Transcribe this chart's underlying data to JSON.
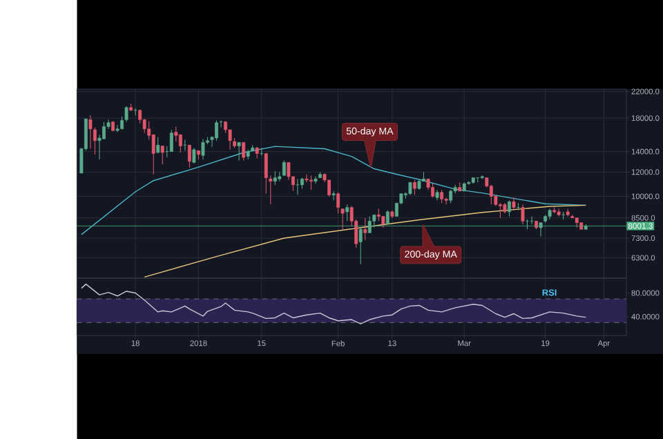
{
  "chart_data": [
    {
      "type": "candlestick",
      "x": [
        "2017-12-06",
        "2017-12-07",
        "2017-12-08",
        "2017-12-09",
        "2017-12-10",
        "2017-12-11",
        "2017-12-12",
        "2017-12-13",
        "2017-12-14",
        "2017-12-15",
        "2017-12-16",
        "2017-12-17",
        "2017-12-18",
        "2017-12-19",
        "2017-12-20",
        "2017-12-21",
        "2017-12-22",
        "2017-12-23",
        "2017-12-24",
        "2017-12-25",
        "2017-12-26",
        "2017-12-27",
        "2017-12-28",
        "2017-12-29",
        "2017-12-30",
        "2017-12-31",
        "2018-01-01",
        "2018-01-02",
        "2018-01-03",
        "2018-01-04",
        "2018-01-05",
        "2018-01-06",
        "2018-01-07",
        "2018-01-08",
        "2018-01-09",
        "2018-01-10",
        "2018-01-11",
        "2018-01-12",
        "2018-01-13",
        "2018-01-14",
        "2018-01-15",
        "2018-01-16",
        "2018-01-17",
        "2018-01-18",
        "2018-01-19",
        "2018-01-20",
        "2018-01-21",
        "2018-01-22",
        "2018-01-23",
        "2018-01-24",
        "2018-01-25",
        "2018-01-26",
        "2018-01-27",
        "2018-01-28",
        "2018-01-29",
        "2018-01-30",
        "2018-01-31",
        "2018-02-01",
        "2018-02-02",
        "2018-02-03",
        "2018-02-04",
        "2018-02-05",
        "2018-02-06",
        "2018-02-07",
        "2018-02-08",
        "2018-02-09",
        "2018-02-10",
        "2018-02-11",
        "2018-02-12",
        "2018-02-13",
        "2018-02-14",
        "2018-02-15",
        "2018-02-16",
        "2018-02-17",
        "2018-02-18",
        "2018-02-19",
        "2018-02-20",
        "2018-02-21",
        "2018-02-22",
        "2018-02-23",
        "2018-02-24",
        "2018-02-25",
        "2018-02-26",
        "2018-02-27",
        "2018-02-28",
        "2018-03-01",
        "2018-03-02",
        "2018-03-03",
        "2018-03-04",
        "2018-03-05",
        "2018-03-06",
        "2018-03-07",
        "2018-03-08",
        "2018-03-09",
        "2018-03-10",
        "2018-03-11",
        "2018-03-12",
        "2018-03-13",
        "2018-03-14",
        "2018-03-15",
        "2018-03-16",
        "2018-03-17",
        "2018-03-18",
        "2018-03-19",
        "2018-03-20",
        "2018-03-21",
        "2018-03-22",
        "2018-03-23",
        "2018-03-24",
        "2018-03-25",
        "2018-03-26",
        "2018-03-27",
        "2018-03-28"
      ],
      "ohlc": [
        [
          11900,
          14400,
          11900,
          14300
        ],
        [
          14300,
          17900,
          14100,
          17900
        ],
        [
          17800,
          18400,
          14300,
          16600
        ],
        [
          16500,
          16800,
          13700,
          15200
        ],
        [
          15200,
          15900,
          13200,
          15500
        ],
        [
          15400,
          17500,
          15400,
          16900
        ],
        [
          16900,
          17800,
          16600,
          17400
        ],
        [
          17500,
          17600,
          16300,
          16400
        ],
        [
          16400,
          17100,
          16200,
          16600
        ],
        [
          16600,
          18200,
          16600,
          17700
        ],
        [
          17800,
          19700,
          17500,
          19500
        ],
        [
          19500,
          20100,
          19000,
          19100
        ],
        [
          19100,
          19400,
          18400,
          19100
        ],
        [
          19100,
          19200,
          17300,
          17800
        ],
        [
          17800,
          17900,
          16100,
          16600
        ],
        [
          16600,
          17600,
          15300,
          15800
        ],
        [
          15900,
          15900,
          11800,
          13800
        ],
        [
          13900,
          15600,
          13800,
          14700
        ],
        [
          14600,
          14600,
          12700,
          13900
        ],
        [
          14000,
          14600,
          13400,
          14000
        ],
        [
          14000,
          16500,
          14000,
          16100
        ],
        [
          16200,
          16900,
          15100,
          15800
        ],
        [
          15900,
          15900,
          13900,
          14600
        ],
        [
          14700,
          15300,
          14100,
          14700
        ],
        [
          14700,
          14700,
          12400,
          13000
        ],
        [
          12900,
          14400,
          12800,
          14200
        ],
        [
          14100,
          14100,
          13200,
          13700
        ],
        [
          13600,
          15400,
          13200,
          15000
        ],
        [
          15000,
          15600,
          14800,
          15200
        ],
        [
          15300,
          15700,
          14500,
          15600
        ],
        [
          15500,
          17700,
          15200,
          17400
        ],
        [
          17500,
          17700,
          16800,
          17500
        ],
        [
          17500,
          17600,
          16100,
          16500
        ],
        [
          16500,
          16500,
          14200,
          15200
        ],
        [
          15100,
          15500,
          14400,
          14600
        ],
        [
          14600,
          15000,
          13100,
          15000
        ],
        [
          15000,
          15000,
          13100,
          13400
        ],
        [
          13500,
          14200,
          13200,
          14000
        ],
        [
          14100,
          14700,
          14000,
          14400
        ],
        [
          14400,
          14500,
          13300,
          13800
        ],
        [
          13800,
          14400,
          13600,
          13800
        ],
        [
          13800,
          13800,
          10200,
          11500
        ],
        [
          11400,
          11700,
          9400,
          11200
        ],
        [
          11200,
          12100,
          10900,
          11500
        ],
        [
          11400,
          12000,
          11200,
          11600
        ],
        [
          11700,
          13100,
          11700,
          12900
        ],
        [
          12900,
          12900,
          11300,
          11600
        ],
        [
          11600,
          11600,
          10400,
          10900
        ],
        [
          10900,
          11400,
          10100,
          10900
        ],
        [
          10900,
          11500,
          10600,
          11400
        ],
        [
          11400,
          11800,
          11100,
          11300
        ],
        [
          11300,
          11700,
          10500,
          11200
        ],
        [
          11200,
          11600,
          11000,
          11400
        ],
        [
          11500,
          12000,
          11500,
          11800
        ],
        [
          11800,
          11900,
          11100,
          11300
        ],
        [
          11300,
          11300,
          10000,
          10100
        ],
        [
          10100,
          10400,
          9700,
          10200
        ],
        [
          10200,
          10300,
          8800,
          9200
        ],
        [
          9100,
          9100,
          7800,
          8800
        ],
        [
          8900,
          9400,
          8300,
          9200
        ],
        [
          9200,
          9300,
          8000,
          8300
        ],
        [
          8300,
          8400,
          6800,
          7000
        ],
        [
          7100,
          7900,
          6000,
          7800
        ],
        [
          7800,
          8500,
          7200,
          7600
        ],
        [
          7600,
          8600,
          7600,
          8300
        ],
        [
          8300,
          8700,
          7900,
          8700
        ],
        [
          8700,
          9100,
          8300,
          8600
        ],
        [
          8600,
          8600,
          7900,
          8100
        ],
        [
          8100,
          9000,
          8100,
          8900
        ],
        [
          8900,
          9000,
          8500,
          8600
        ],
        [
          8600,
          9500,
          8600,
          9500
        ],
        [
          9500,
          10200,
          9400,
          10200
        ],
        [
          10100,
          10300,
          9800,
          10200
        ],
        [
          10200,
          11100,
          10100,
          11100
        ],
        [
          11100,
          11300,
          10100,
          10600
        ],
        [
          10600,
          11300,
          10500,
          11200
        ],
        [
          11200,
          12000,
          11200,
          11400
        ],
        [
          11400,
          11400,
          10500,
          10700
        ],
        [
          10700,
          11000,
          9900,
          10000
        ],
        [
          9900,
          10500,
          9700,
          10300
        ],
        [
          10300,
          10500,
          9500,
          9800
        ],
        [
          9800,
          9900,
          9400,
          9700
        ],
        [
          9700,
          10500,
          9500,
          10400
        ],
        [
          10400,
          10900,
          10200,
          10700
        ],
        [
          10700,
          11100,
          10400,
          10400
        ],
        [
          10400,
          11100,
          10400,
          11000
        ],
        [
          11000,
          11200,
          10900,
          11100
        ],
        [
          11100,
          11500,
          11000,
          11500
        ],
        [
          11500,
          11500,
          11100,
          11500
        ],
        [
          11500,
          11700,
          11400,
          11600
        ],
        [
          11500,
          11500,
          10700,
          10800
        ],
        [
          10800,
          10900,
          9400,
          10000
        ],
        [
          10000,
          10100,
          9300,
          9400
        ],
        [
          9400,
          9500,
          8500,
          9300
        ],
        [
          9400,
          9500,
          8800,
          8900
        ],
        [
          8900,
          9700,
          8600,
          9600
        ],
        [
          9600,
          9900,
          9000,
          9200
        ],
        [
          9200,
          9500,
          9000,
          9200
        ],
        [
          9200,
          9400,
          8100,
          8300
        ],
        [
          8300,
          8400,
          7800,
          8300
        ],
        [
          8300,
          8600,
          8100,
          8300
        ],
        [
          8300,
          8300,
          7800,
          7900
        ],
        [
          7900,
          8200,
          7400,
          8200
        ],
        [
          8300,
          8700,
          8200,
          8600
        ],
        [
          8600,
          9100,
          8400,
          9000
        ],
        [
          9000,
          9200,
          8800,
          8900
        ],
        [
          8900,
          9100,
          8600,
          8700
        ],
        [
          8700,
          8900,
          8400,
          8700
        ],
        [
          8900,
          9100,
          8600,
          8700
        ],
        [
          8600,
          8700,
          8500,
          8500
        ],
        [
          8500,
          8500,
          7900,
          8200
        ],
        [
          8200,
          8200,
          7800,
          7800
        ],
        [
          7800,
          8100,
          7800,
          8001.3
        ]
      ],
      "series": [
        {
          "type": "line",
          "color": "#4db6c8",
          "x": [
            "2017-12-06",
            "2017-12-18",
            "2017-12-22",
            "2018-01-01",
            "2018-01-11",
            "2018-01-18",
            "2018-01-29",
            "2018-02-04",
            "2018-02-09",
            "2018-02-14",
            "2018-02-19",
            "2018-02-27",
            "2018-03-05",
            "2018-03-11",
            "2018-03-19",
            "2018-03-28"
          ],
          "values": [
            7500,
            10350,
            11250,
            12450,
            13900,
            14550,
            14300,
            13500,
            12300,
            11800,
            11350,
            10550,
            10250,
            9900,
            9450,
            9350
          ]
        },
        {
          "type": "line",
          "color": "#e6c77a",
          "x": [
            "2017-12-20",
            "2018-01-05",
            "2018-01-20",
            "2018-02-05",
            "2018-02-19",
            "2018-03-05",
            "2018-03-20",
            "2018-03-28"
          ],
          "values": [
            5450,
            6360,
            7300,
            7860,
            8380,
            8860,
            9270,
            9350
          ]
        }
      ],
      "xlim": [
        "2017-12-05",
        "2018-04-06"
      ],
      "xticks": [
        {
          "value": "2017-12-18",
          "label": null
        },
        {
          "value": "2018-01-01",
          "label": null
        },
        {
          "value": "2018-01-15",
          "label": null
        },
        {
          "value": "2018-02-01",
          "label": null
        },
        {
          "value": "2018-02-13",
          "label": null
        },
        {
          "value": "2018-03-01",
          "label": null
        },
        {
          "value": "2018-03-19",
          "label": null
        },
        {
          "value": "2018-04-01",
          "label": null
        }
      ],
      "ylim": [
        5400,
        22400
      ],
      "log": true,
      "yticks": [
        {
          "value": 6300,
          "label": "6300.0"
        },
        {
          "value": 7300,
          "label": "7300.0"
        },
        {
          "value": 8500,
          "label": "8500.0"
        },
        {
          "value": 10000,
          "label": "10000.0"
        },
        {
          "value": 12000,
          "label": "12000.0"
        },
        {
          "value": 14000,
          "label": "14000.0"
        },
        {
          "value": 18000,
          "label": "18000.0"
        },
        {
          "value": 22000,
          "label": "22000.0"
        }
      ],
      "tick_labels": "y",
      "grid": true,
      "ref_lines": [
        {
          "axis": "y",
          "value": 8001.3,
          "label": "8001.3",
          "color": "#4caf82"
        }
      ],
      "annotations": [
        "50-day MA",
        "200-day MA"
      ]
    },
    {
      "type": "line",
      "color": "#c9c9d6",
      "x": [
        "2017-12-06",
        "2017-12-07",
        "2017-12-10",
        "2017-12-12",
        "2017-12-14",
        "2017-12-16",
        "2017-12-18",
        "2017-12-20",
        "2017-12-23",
        "2017-12-24",
        "2017-12-26",
        "2017-12-29",
        "2017-12-30",
        "2018-01-02",
        "2018-01-03",
        "2018-01-06",
        "2018-01-07",
        "2018-01-09",
        "2018-01-12",
        "2018-01-13",
        "2018-01-16",
        "2018-01-18",
        "2018-01-20",
        "2018-01-22",
        "2018-01-25",
        "2018-01-28",
        "2018-01-30",
        "2018-02-01",
        "2018-02-04",
        "2018-02-06",
        "2018-02-08",
        "2018-02-11",
        "2018-02-13",
        "2018-02-15",
        "2018-02-17",
        "2018-02-19",
        "2018-02-21",
        "2018-02-24",
        "2018-02-27",
        "2018-03-01",
        "2018-03-03",
        "2018-03-05",
        "2018-03-08",
        "2018-03-10",
        "2018-03-12",
        "2018-03-14",
        "2018-03-16",
        "2018-03-20",
        "2018-03-23",
        "2018-03-26",
        "2018-03-28"
      ],
      "values": [
        88,
        95,
        77,
        81,
        75,
        83,
        80,
        68,
        48,
        50,
        48,
        58,
        53,
        41,
        49,
        57,
        63,
        51,
        48,
        46,
        37,
        38,
        46,
        38,
        43,
        46,
        38,
        33,
        35,
        28,
        35,
        41,
        43,
        53,
        58,
        59,
        51,
        48,
        55,
        58,
        61,
        59,
        45,
        39,
        45,
        37,
        38,
        48,
        46,
        41,
        39
      ],
      "xlim": [
        "2017-12-05",
        "2018-04-06"
      ],
      "xticks": [
        {
          "value": "2017-12-18",
          "label": "18"
        },
        {
          "value": "2018-01-01",
          "label": "2018"
        },
        {
          "value": "2018-01-15",
          "label": "15"
        },
        {
          "value": "2018-02-01",
          "label": "Feb"
        },
        {
          "value": "2018-02-13",
          "label": "13"
        },
        {
          "value": "2018-03-01",
          "label": "Mar"
        },
        {
          "value": "2018-03-19",
          "label": "19"
        },
        {
          "value": "2018-04-01",
          "label": "Apr"
        }
      ],
      "ylim": [
        8,
        105
      ],
      "yticks": [
        {
          "value": 40,
          "label": "40.0000"
        },
        {
          "value": 80,
          "label": "80.0000"
        }
      ],
      "grid": "x",
      "bands": [
        {
          "axis": "y",
          "from": 30,
          "to": 70,
          "color": "#2c2350"
        }
      ],
      "ref_lines": [
        {
          "axis": "y",
          "value": 30,
          "color": "#7a7f8c",
          "line_style": "dashed"
        },
        {
          "axis": "y",
          "value": 70,
          "color": "#7a7f8c",
          "line_style": "dashed"
        }
      ],
      "annotations": [
        "RSI"
      ]
    }
  ]
}
